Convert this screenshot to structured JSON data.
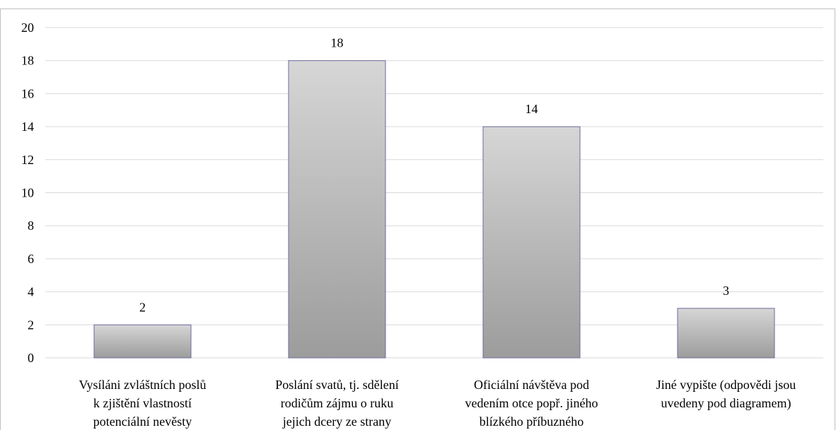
{
  "chart_data": {
    "type": "bar",
    "categories": [
      [
        "Vysíláni zvláštních poslů",
        "k zjištění vlastností",
        "potenciální nevěsty"
      ],
      [
        "Poslání svatů, tj. sdělení",
        "rodičům zájmu o ruku",
        "jejich dcery ze strany"
      ],
      [
        "Oficiální návštěva pod",
        "vedením otce popř. jiného",
        "blízkého příbuzného"
      ],
      [
        "Jiné vypište (odpovědi jsou",
        "uvedeny pod diagramem)"
      ]
    ],
    "values": [
      2,
      18,
      14,
      3
    ],
    "data_labels": [
      "2",
      "18",
      "14",
      "3"
    ],
    "ylim": [
      0,
      20
    ],
    "yticks": [
      0,
      2,
      4,
      6,
      8,
      10,
      12,
      14,
      16,
      18,
      20
    ],
    "grid": true,
    "legend": "none",
    "colors": {
      "bar_top": "#d6d6d6",
      "bar_bottom": "#9c9c9c",
      "bar_stroke": "#6b6b9e",
      "grid": "#d9d9d9",
      "frame": "#bfbfbf"
    }
  }
}
